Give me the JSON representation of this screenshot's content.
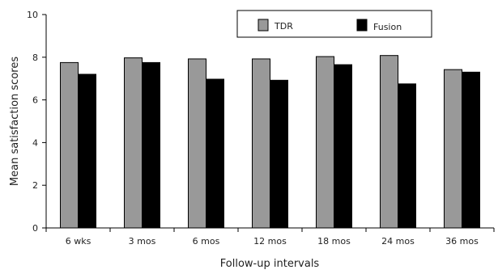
{
  "chart_data": {
    "type": "bar",
    "title": "",
    "xlabel": "Follow-up intervals",
    "ylabel": "Mean satisfaction scores",
    "ylim": [
      0,
      10
    ],
    "yticks": [
      "0",
      "2",
      "4",
      "6",
      "8",
      "10"
    ],
    "grid": false,
    "legend_position": "top-right",
    "categories": [
      "6 wks",
      "3 mos",
      "6 mos",
      "12 mos",
      "18 mos",
      "24 mos",
      "36 mos"
    ],
    "series": [
      {
        "name": "TDR",
        "color": "#999999",
        "values": [
          7.75,
          7.97,
          7.92,
          7.92,
          8.03,
          8.08,
          7.42
        ]
      },
      {
        "name": "Fusion",
        "color": "#000000",
        "values": [
          7.2,
          7.75,
          6.97,
          6.92,
          7.65,
          6.75,
          7.3
        ]
      }
    ]
  }
}
